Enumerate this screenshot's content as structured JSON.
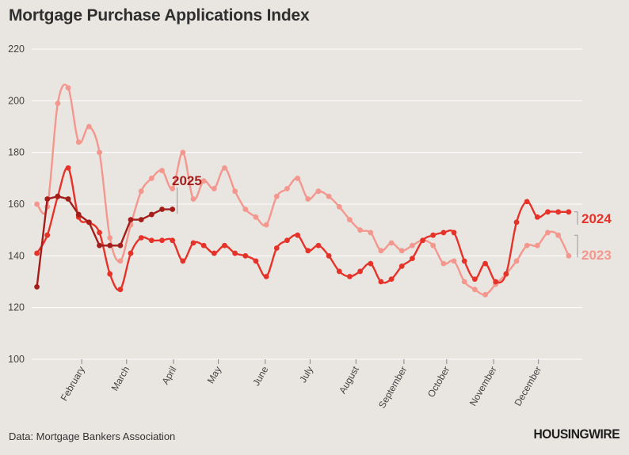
{
  "header": {
    "title": "Mortgage Purchase Applications Index"
  },
  "footer": {
    "source": "Data: Mortgage Bankers Association",
    "brand": "HOUSINGWIRE"
  },
  "chart_data": {
    "type": "line",
    "title": "Mortgage Purchase Applications Index",
    "xlabel": "",
    "ylabel": "",
    "ylim": [
      100,
      220
    ],
    "yticks": [
      100,
      120,
      140,
      160,
      180,
      200,
      220
    ],
    "grid": true,
    "legend": "direct labels at line ends",
    "x_unit": "week of year",
    "xlim": [
      0.5,
      53
    ],
    "month_ticks": [
      {
        "label": "February",
        "week": 5.3
      },
      {
        "label": "March",
        "week": 9.6
      },
      {
        "label": "April",
        "week": 14.1
      },
      {
        "label": "May",
        "week": 18.4
      },
      {
        "label": "June",
        "week": 22.9
      },
      {
        "label": "July",
        "week": 27.2
      },
      {
        "label": "August",
        "week": 31.6
      },
      {
        "label": "September",
        "week": 36.2
      },
      {
        "label": "October",
        "week": 40.3
      },
      {
        "label": "November",
        "week": 44.8
      },
      {
        "label": "December",
        "week": 49.1
      }
    ],
    "series": [
      {
        "name": "2023",
        "color": "#f4978e",
        "line_style": "curve",
        "x": [
          1,
          2,
          3,
          4,
          5,
          6,
          7,
          8,
          9,
          10,
          11,
          12,
          13,
          14,
          15,
          16,
          17,
          18,
          19,
          20,
          21,
          22,
          23,
          24,
          25,
          26,
          27,
          28,
          29,
          30,
          31,
          32,
          33,
          34,
          35,
          36,
          37,
          38,
          39,
          40,
          41,
          42,
          43,
          44,
          45,
          46,
          47,
          48,
          49,
          50,
          51,
          52
        ],
        "values": [
          160,
          159,
          199,
          205,
          184,
          190,
          180,
          147,
          138,
          152,
          165,
          170,
          173,
          166,
          180,
          162,
          169,
          166,
          174,
          165,
          158,
          155,
          152,
          163,
          166,
          170,
          162,
          165,
          163,
          159,
          154,
          150,
          149,
          142,
          145,
          142,
          144,
          146,
          144,
          137,
          138,
          130,
          127,
          125,
          129,
          133,
          138,
          144,
          144,
          149,
          148,
          140
        ]
      },
      {
        "name": "2024",
        "color": "#e6332a",
        "line_style": "curve",
        "x": [
          1,
          2,
          3,
          4,
          5,
          6,
          7,
          8,
          9,
          10,
          11,
          12,
          13,
          14,
          15,
          16,
          17,
          18,
          19,
          20,
          21,
          22,
          23,
          24,
          25,
          26,
          27,
          28,
          29,
          30,
          31,
          32,
          33,
          34,
          35,
          36,
          37,
          38,
          39,
          40,
          41,
          42,
          43,
          44,
          45,
          46,
          47,
          48,
          49,
          50,
          51,
          52
        ],
        "values": [
          141,
          148,
          163,
          174,
          155,
          153,
          149,
          133,
          127,
          141,
          147,
          146,
          146,
          146,
          138,
          145,
          144,
          141,
          144,
          141,
          140,
          138,
          132,
          143,
          146,
          148,
          142,
          144,
          140,
          134,
          132,
          134,
          137,
          130,
          131,
          136,
          139,
          146,
          148,
          149,
          149,
          138,
          131,
          137,
          130,
          133,
          153,
          161,
          155,
          157,
          157,
          157
        ]
      },
      {
        "name": "2025",
        "color": "#a31d1a",
        "line_style": "straight",
        "x": [
          1,
          2,
          3,
          4,
          5,
          6,
          7,
          8,
          9,
          10,
          11,
          12,
          13,
          14
        ],
        "values": [
          128,
          162,
          163,
          162,
          156,
          153,
          144,
          144,
          144,
          154,
          154,
          156,
          158,
          158
        ]
      }
    ]
  }
}
